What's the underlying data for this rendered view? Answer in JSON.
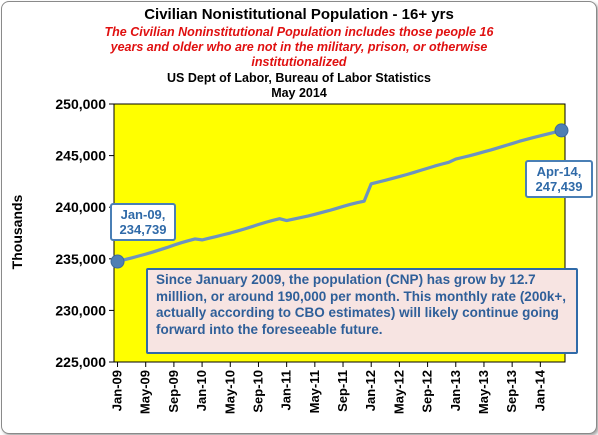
{
  "chart_data": {
    "type": "line",
    "title": "Civilian Nonistitutional Population - 16+ yrs",
    "subtitle_lines": [
      "The Civilian Noninstitutional Population includes those people 16",
      "years and older who are not in the military, prison, or otherwise",
      "institutionalized"
    ],
    "source": "US Dept of Labor, Bureau of Labor Statistics",
    "date": "May 2014",
    "ylabel": "Thousands",
    "xlabel": "",
    "ylim": [
      225000,
      250000
    ],
    "y_ticks": [
      "225,000",
      "230,000",
      "235,000",
      "240,000",
      "245,000",
      "250,000"
    ],
    "y_tick_values": [
      225000,
      230000,
      235000,
      240000,
      245000,
      250000
    ],
    "x_ticks": [
      "Jan-09",
      "May-09",
      "Sep-09",
      "Jan-10",
      "May-10",
      "Sep-10",
      "Jan-11",
      "May-11",
      "Sep-11",
      "Jan-12",
      "May-12",
      "Sep-12",
      "Jan-13",
      "May-13",
      "Sep-13",
      "Jan-14"
    ],
    "grid": false,
    "colors": {
      "plot_background": "#ffff00",
      "line": "#6d93c0",
      "callout_border": "#4a7fb5",
      "note_background": "#f7e4e2",
      "subtitle": "#e01010"
    },
    "series": [
      {
        "values": [
          234739,
          234913,
          235086,
          235271,
          235452,
          235655,
          235870,
          236087,
          236322,
          236550,
          236743,
          236924,
          236832,
          236998,
          237159,
          237329,
          237499,
          237690,
          237890,
          238099,
          238322,
          238530,
          238715,
          238889,
          238704,
          238851,
          239000,
          239146,
          239313,
          239489,
          239671,
          239871,
          240071,
          240269,
          240441,
          240584,
          242269,
          242435,
          242604,
          242784,
          242966,
          243155,
          243354,
          243566,
          243772,
          243983,
          244174,
          244350,
          244663,
          244828,
          244995,
          245175,
          245363,
          245552,
          245756,
          245959,
          246168,
          246381,
          246567,
          246745,
          246915,
          247085,
          247258,
          247439
        ]
      }
    ],
    "annotations": [
      {
        "label": "Jan-09,",
        "value": "234,739"
      },
      {
        "label": "Apr-14,",
        "value": "247,439"
      }
    ],
    "note": "Since January  2009, the  population (CNP) has grow by 12.7 milllion, or around 190,000 per month.  This monthly rate (200k+, actually according to CBO estimates) will likely continue going forward into the foreseeable future."
  }
}
